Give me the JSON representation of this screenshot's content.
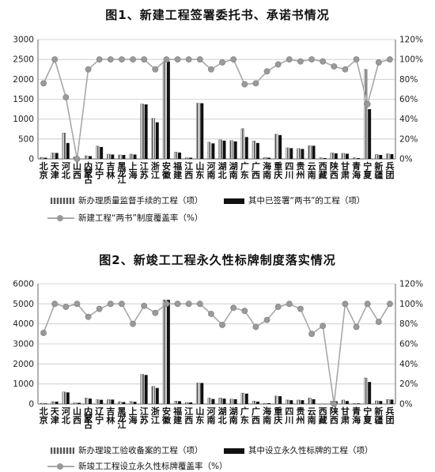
{
  "chart_data": [
    {
      "type": "bar",
      "title": "图1、新建工程签署委托书、承诺书情况",
      "categories": [
        "北京",
        "天津",
        "河北",
        "山西",
        "内蒙古",
        "辽宁",
        "吉林",
        "黑龙江",
        "上海",
        "江苏",
        "浙江",
        "安徽",
        "福建",
        "江西",
        "山东",
        "河南",
        "湖北",
        "湖南",
        "广东",
        "广西",
        "海南",
        "重庆",
        "四川",
        "贵州",
        "云南",
        "西藏",
        "陕西",
        "甘肃",
        "青海",
        "宁夏",
        "新疆",
        "兵团"
      ],
      "ylim": [
        0,
        3000
      ],
      "yticks": [
        "0",
        "500",
        "1000",
        "1500",
        "2000",
        "2500",
        "3000"
      ],
      "y2lim": [
        0,
        120
      ],
      "y2ticks": [
        "0%",
        "20%",
        "40%",
        "60%",
        "80%",
        "100%",
        "120%"
      ],
      "series": [
        {
          "name": "新办理质量监督手续的工程（项）",
          "style": "hatch",
          "values": [
            40,
            150,
            650,
            50,
            80,
            320,
            120,
            100,
            120,
            1380,
            1020,
            2450,
            170,
            30,
            1400,
            420,
            480,
            460,
            760,
            450,
            40,
            620,
            280,
            260,
            330,
            30,
            150,
            140,
            30,
            2250,
            110,
            130
          ]
        },
        {
          "name": "其中已签署“两书”的工程（项）",
          "style": "solid",
          "values": [
            30,
            150,
            400,
            0,
            70,
            300,
            110,
            100,
            110,
            1370,
            920,
            2450,
            160,
            30,
            1400,
            390,
            460,
            440,
            550,
            400,
            30,
            600,
            270,
            250,
            330,
            20,
            140,
            130,
            20,
            1250,
            100,
            120
          ]
        },
        {
          "name": "新建工程“两书”制度覆盖率（%）",
          "style": "line",
          "axis": "right",
          "values": [
            76,
            100,
            62,
            0,
            90,
            100,
            100,
            100,
            100,
            100,
            90,
            100,
            100,
            100,
            100,
            90,
            97,
            100,
            75,
            76,
            88,
            95,
            100,
            98,
            100,
            98,
            93,
            90,
            100,
            55,
            97,
            100
          ]
        }
      ]
    },
    {
      "type": "bar",
      "title": "图2、新竣工工程永久性标牌制度落实情况",
      "categories": [
        "北京",
        "天津",
        "河北",
        "山西",
        "内蒙古",
        "辽宁",
        "吉林",
        "黑龙江",
        "上海",
        "江苏",
        "浙江",
        "安徽",
        "福建",
        "江西",
        "山东",
        "河南",
        "湖北",
        "湖南",
        "广东",
        "广西",
        "海南",
        "重庆",
        "四川",
        "贵州",
        "云南",
        "西藏",
        "陕西",
        "甘肃",
        "青海",
        "宁夏",
        "新疆",
        "兵团"
      ],
      "ylim": [
        0,
        6000
      ],
      "yticks": [
        "0",
        "1000",
        "2000",
        "3000",
        "4000",
        "5000",
        "6000"
      ],
      "y2lim": [
        0,
        120
      ],
      "y2ticks": [
        "0%",
        "20%",
        "40%",
        "60%",
        "80%",
        "100%",
        "120%"
      ],
      "series": [
        {
          "name": "新办理竣工验收备案的工程（项）",
          "style": "hatch",
          "values": [
            40,
            120,
            600,
            60,
            300,
            220,
            220,
            120,
            130,
            1480,
            880,
            5200,
            150,
            80,
            1050,
            300,
            300,
            250,
            550,
            150,
            40,
            400,
            200,
            200,
            300,
            0,
            150,
            200,
            30,
            1300,
            160,
            230
          ]
        },
        {
          "name": "其中设立永久性标牌的工程（项）",
          "style": "solid",
          "values": [
            30,
            120,
            580,
            60,
            270,
            210,
            220,
            100,
            110,
            1450,
            800,
            5200,
            140,
            80,
            1050,
            250,
            270,
            240,
            520,
            120,
            40,
            390,
            190,
            190,
            240,
            0,
            140,
            150,
            30,
            1100,
            150,
            220
          ]
        },
        {
          "name": "新竣工工程设立永久性标牌覆盖率（%）",
          "style": "line",
          "axis": "right",
          "values": [
            71,
            100,
            97,
            100,
            87,
            95,
            100,
            100,
            80,
            98,
            91,
            100,
            100,
            100,
            100,
            90,
            79,
            96,
            93,
            77,
            84,
            97,
            100,
            95,
            70,
            78,
            0,
            100,
            77,
            100,
            82,
            100
          ]
        }
      ]
    }
  ]
}
